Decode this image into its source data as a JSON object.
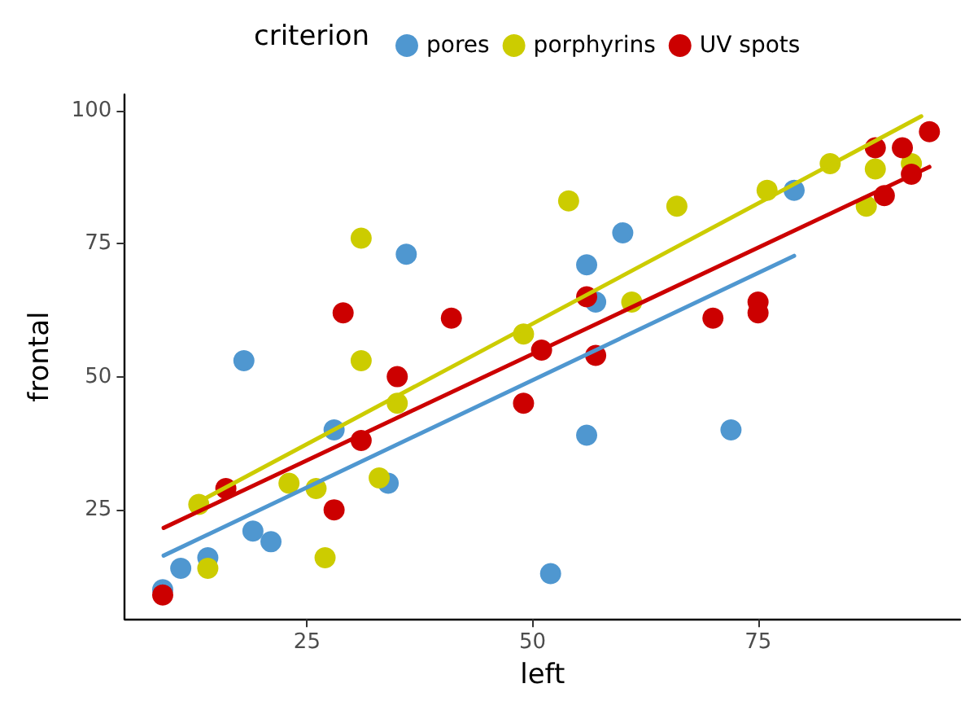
{
  "chart_data": {
    "type": "scatter",
    "xlabel": "left",
    "ylabel": "frontal",
    "legend_title": "criterion",
    "legend": "top",
    "grid": false,
    "marker": "circle",
    "xlim": [
      4.8,
      97.4
    ],
    "xticks": [
      25,
      50,
      75
    ],
    "ylim": [
      4.5,
      103
    ],
    "yticks": [
      25,
      50,
      75,
      100
    ],
    "series": [
      {
        "name": "pores",
        "color": "#4f97d0",
        "x": [
          9,
          11,
          14,
          18,
          19,
          21,
          28,
          34,
          36,
          52,
          56,
          56,
          57,
          60,
          72,
          79
        ],
        "values": [
          10,
          14,
          16,
          53,
          21,
          19,
          40,
          30,
          73,
          13,
          71,
          39,
          64,
          77,
          40,
          85
        ]
      },
      {
        "name": "porphyrins",
        "color": "#cccc00",
        "x": [
          13,
          14,
          23,
          26,
          27,
          31,
          31,
          33,
          35,
          49,
          54,
          61,
          66,
          76,
          83,
          87,
          88,
          92
        ],
        "values": [
          26,
          14,
          30,
          29,
          16,
          76,
          53,
          31,
          45,
          58,
          83,
          64,
          82,
          85,
          90,
          82,
          89,
          90
        ]
      },
      {
        "name": "UV spots",
        "color": "#cc0000",
        "x": [
          9,
          16,
          28,
          29,
          31,
          35,
          41,
          49,
          51,
          56,
          57,
          70,
          75,
          75,
          88,
          89,
          91,
          92,
          94
        ],
        "values": [
          9,
          29,
          25,
          62,
          38,
          50,
          61,
          45,
          55,
          65,
          54,
          61,
          64,
          62,
          93,
          84,
          93,
          88,
          96
        ]
      },
      {
        "type": "line",
        "marker": "none",
        "color": "#4f97d0",
        "x": [
          9.1,
          79
        ],
        "values": [
          16.4,
          72.7
        ]
      },
      {
        "type": "line",
        "marker": "none",
        "color": "#cccc00",
        "x": [
          13,
          93.1
        ],
        "values": [
          26.5,
          98.9
        ]
      },
      {
        "type": "line",
        "marker": "none",
        "color": "#cc0000",
        "x": [
          9.1,
          94
        ],
        "values": [
          21.6,
          89.4
        ]
      }
    ]
  }
}
